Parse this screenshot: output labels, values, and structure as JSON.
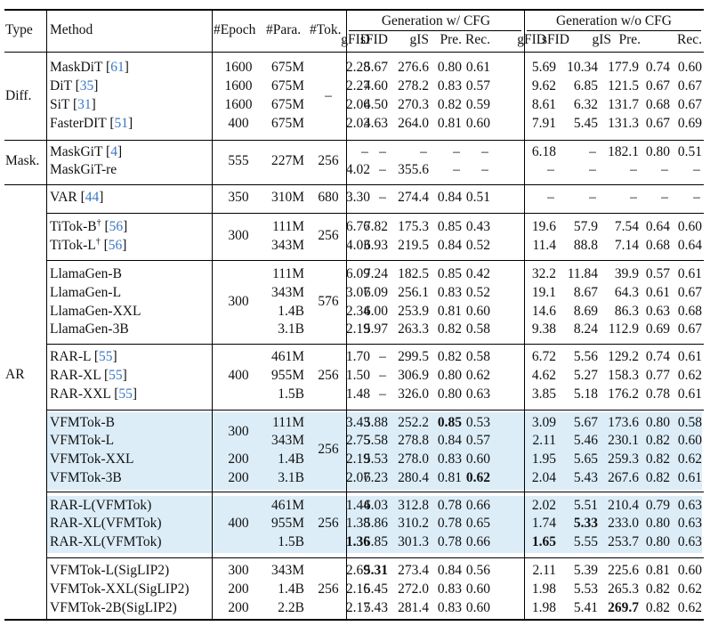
{
  "header": {
    "type": "Type",
    "method": "Method",
    "epoch": "#Epoch",
    "para": "#Para.",
    "tok": "#Tok.",
    "gen_cfg": "Generation w/ CFG",
    "gen_nocfg": "Generation w/o CFG",
    "metrics": [
      "gFID",
      "sFID",
      "gIS",
      "Pre.",
      "Rec."
    ]
  },
  "groups": [
    {
      "type": "Diff.",
      "epoch_merged": null,
      "tok_merged": "–",
      "rows": [
        {
          "name": "MaskDiT",
          "cite": "61",
          "epoch": "1600",
          "para": "675M",
          "cfg": [
            "2.28",
            "5.67",
            "276.6",
            "0.80",
            "0.61"
          ],
          "nocfg": [
            "5.69",
            "10.34",
            "177.9",
            "0.74",
            "0.60"
          ]
        },
        {
          "name": "DiT",
          "cite": "35",
          "epoch": "1600",
          "para": "675M",
          "cfg": [
            "2.27",
            "4.60",
            "278.2",
            "0.83",
            "0.57"
          ],
          "nocfg": [
            "9.62",
            "6.85",
            "121.5",
            "0.67",
            "0.67"
          ]
        },
        {
          "name": "SiT",
          "cite": "31",
          "epoch": "1600",
          "para": "675M",
          "cfg": [
            "2.06",
            "4.50",
            "270.3",
            "0.82",
            "0.59"
          ],
          "nocfg": [
            "8.61",
            "6.32",
            "131.7",
            "0.68",
            "0.67"
          ]
        },
        {
          "name": "FasterDIT",
          "cite": "51",
          "epoch": "400",
          "para": "675M",
          "cfg": [
            "2.03",
            "4.63",
            "264.0",
            "0.81",
            "0.60"
          ],
          "nocfg": [
            "7.91",
            "5.45",
            "131.3",
            "0.67",
            "0.69"
          ]
        }
      ]
    },
    {
      "type": "Mask.",
      "epoch_merged": "555",
      "para_merged": "227M",
      "tok_merged": "256",
      "rows": [
        {
          "name": "MaskGiT",
          "cite": "4",
          "cfg": [
            "–",
            "–",
            "–",
            "–",
            "–"
          ],
          "nocfg": [
            "6.18",
            "–",
            "182.1",
            "0.80",
            "0.51"
          ]
        },
        {
          "name": "MaskGiT-re",
          "cite": "",
          "cfg": [
            "4.02",
            "–",
            "355.6",
            "–",
            "–"
          ],
          "nocfg": [
            "–",
            "–",
            "–",
            "–",
            "–"
          ]
        }
      ]
    },
    {
      "type": "AR",
      "rows": [
        {
          "name": "VAR",
          "cite": "44",
          "epoch": "350",
          "para": "310M",
          "tok": "680",
          "cfg": [
            "3.30",
            "–",
            "274.4",
            "0.84",
            "0.51"
          ],
          "nocfg": [
            "–",
            "–",
            "–",
            "–",
            "–"
          ]
        },
        {
          "name": "TiTok-B",
          "dagger": "†",
          "cite": "56",
          "para": "111M",
          "cfg": [
            "6.76",
            "7.82",
            "175.3",
            "0.85",
            "0.43"
          ],
          "nocfg": [
            "19.6",
            "57.9",
            "7.54",
            "0.64",
            "0.60"
          ]
        },
        {
          "name": "TiTok-L",
          "dagger": "†",
          "cite": "56",
          "para": "343M",
          "cfg": [
            "4.03",
            "6.93",
            "219.5",
            "0.84",
            "0.52"
          ],
          "nocfg": [
            "11.4",
            "88.8",
            "7.14",
            "0.68",
            "0.64"
          ]
        },
        {
          "name": "LlamaGen-B",
          "para": "111M",
          "cfg": [
            "6.09",
            "7.24",
            "182.5",
            "0.85",
            "0.42"
          ],
          "nocfg": [
            "32.2",
            "11.84",
            "39.9",
            "0.57",
            "0.61"
          ]
        },
        {
          "name": "LlamaGen-L",
          "para": "343M",
          "cfg": [
            "3.07",
            "6.09",
            "256.1",
            "0.83",
            "0.52"
          ],
          "nocfg": [
            "19.1",
            "8.67",
            "64.3",
            "0.61",
            "0.67"
          ]
        },
        {
          "name": "LlamaGen-XXL",
          "para": "1.4B",
          "cfg": [
            "2.34",
            "6.00",
            "253.9",
            "0.81",
            "0.60"
          ],
          "nocfg": [
            "14.6",
            "8.69",
            "86.3",
            "0.63",
            "0.68"
          ]
        },
        {
          "name": "LlamaGen-3B",
          "para": "3.1B",
          "cfg": [
            "2.19",
            "5.97",
            "263.3",
            "0.82",
            "0.58"
          ],
          "nocfg": [
            "9.38",
            "8.24",
            "112.9",
            "0.69",
            "0.67"
          ]
        },
        {
          "name": "RAR-L",
          "cite": "55",
          "para": "461M",
          "cfg": [
            "1.70",
            "–",
            "299.5",
            "0.82",
            "0.58"
          ],
          "nocfg": [
            "6.72",
            "5.56",
            "129.2",
            "0.74",
            "0.61"
          ]
        },
        {
          "name": "RAR-XL",
          "cite": "55",
          "para": "955M",
          "cfg": [
            "1.50",
            "–",
            "306.9",
            "0.80",
            "0.62"
          ],
          "nocfg": [
            "4.62",
            "5.27",
            "158.3",
            "0.77",
            "0.62"
          ]
        },
        {
          "name": "RAR-XXL",
          "cite": "55",
          "para": "1.5B",
          "cfg": [
            "1.48",
            "–",
            "326.0",
            "0.80",
            "0.63"
          ],
          "nocfg": [
            "3.85",
            "5.18",
            "176.2",
            "0.78",
            "0.61"
          ]
        },
        {
          "name": "VFMTok-B",
          "para": "111M",
          "cfg": [
            "3.43",
            "5.88",
            "252.2",
            "0.85",
            "0.53"
          ],
          "nocfg": [
            "3.09",
            "5.67",
            "173.6",
            "0.80",
            "0.58"
          ]
        },
        {
          "name": "VFMTok-L",
          "para": "343M",
          "cfg": [
            "2.75",
            "5.58",
            "278.8",
            "0.84",
            "0.57"
          ],
          "nocfg": [
            "2.11",
            "5.46",
            "230.1",
            "0.82",
            "0.60"
          ]
        },
        {
          "name": "VFMTok-XXL",
          "epoch": "200",
          "para": "1.4B",
          "cfg": [
            "2.19",
            "5.53",
            "278.0",
            "0.83",
            "0.60"
          ],
          "nocfg": [
            "1.95",
            "5.65",
            "259.3",
            "0.82",
            "0.62"
          ]
        },
        {
          "name": "VFMTok-3B",
          "epoch": "200",
          "para": "3.1B",
          "cfg": [
            "2.07",
            "6.23",
            "280.4",
            "0.81",
            "0.62"
          ],
          "nocfg": [
            "2.04",
            "5.43",
            "267.6",
            "0.82",
            "0.61"
          ]
        },
        {
          "name": "RAR-L(VFMTok)",
          "para": "461M",
          "cfg": [
            "1.44",
            "6.03",
            "312.8",
            "0.78",
            "0.66"
          ],
          "nocfg": [
            "2.02",
            "5.51",
            "210.4",
            "0.79",
            "0.63"
          ]
        },
        {
          "name": "RAR-XL(VFMTok)",
          "para": "955M",
          "cfg": [
            "1.38",
            "5.86",
            "310.2",
            "0.78",
            "0.65"
          ],
          "nocfg": [
            "1.74",
            "5.33",
            "233.0",
            "0.80",
            "0.63"
          ]
        },
        {
          "name": "RAR-XL(VFMTok)",
          "para": "1.5B",
          "cfg": [
            "1.36",
            "5.85",
            "301.3",
            "0.78",
            "0.66"
          ],
          "nocfg": [
            "1.65",
            "5.55",
            "253.7",
            "0.80",
            "0.63"
          ]
        },
        {
          "name": "VFMTok-L(SigLIP2)",
          "epoch": "300",
          "para": "343M",
          "cfg": [
            "2.69",
            "5.31",
            "273.4",
            "0.84",
            "0.56"
          ],
          "nocfg": [
            "2.11",
            "5.39",
            "225.6",
            "0.81",
            "0.60"
          ]
        },
        {
          "name": "VFMTok-XXL(SigLIP2)",
          "epoch": "200",
          "para": "1.4B",
          "cfg": [
            "2.16",
            "5.45",
            "272.0",
            "0.83",
            "0.60"
          ],
          "nocfg": [
            "1.98",
            "5.53",
            "265.3",
            "0.82",
            "0.62"
          ]
        },
        {
          "name": "VFMTok-2B(SigLIP2)",
          "epoch": "200",
          "para": "2.2B",
          "cfg": [
            "2.17",
            "5.43",
            "281.4",
            "0.83",
            "0.60"
          ],
          "nocfg": [
            "1.98",
            "5.41",
            "269.7",
            "0.82",
            "0.62"
          ]
        }
      ]
    }
  ],
  "merged": {
    "titok_epoch": "300",
    "titok_tok": "256",
    "llama_epoch": "300",
    "llama_tok": "576",
    "rar_epoch": "400",
    "rar_tok": "256",
    "vfm_epoch": "300",
    "vfm_tok": "256",
    "rarvfm_epoch": "400",
    "rarvfm_tok": "256",
    "sig_tok": "256"
  },
  "colors": {
    "highlight": "#dcedf8",
    "citation": "#3a78c4"
  }
}
